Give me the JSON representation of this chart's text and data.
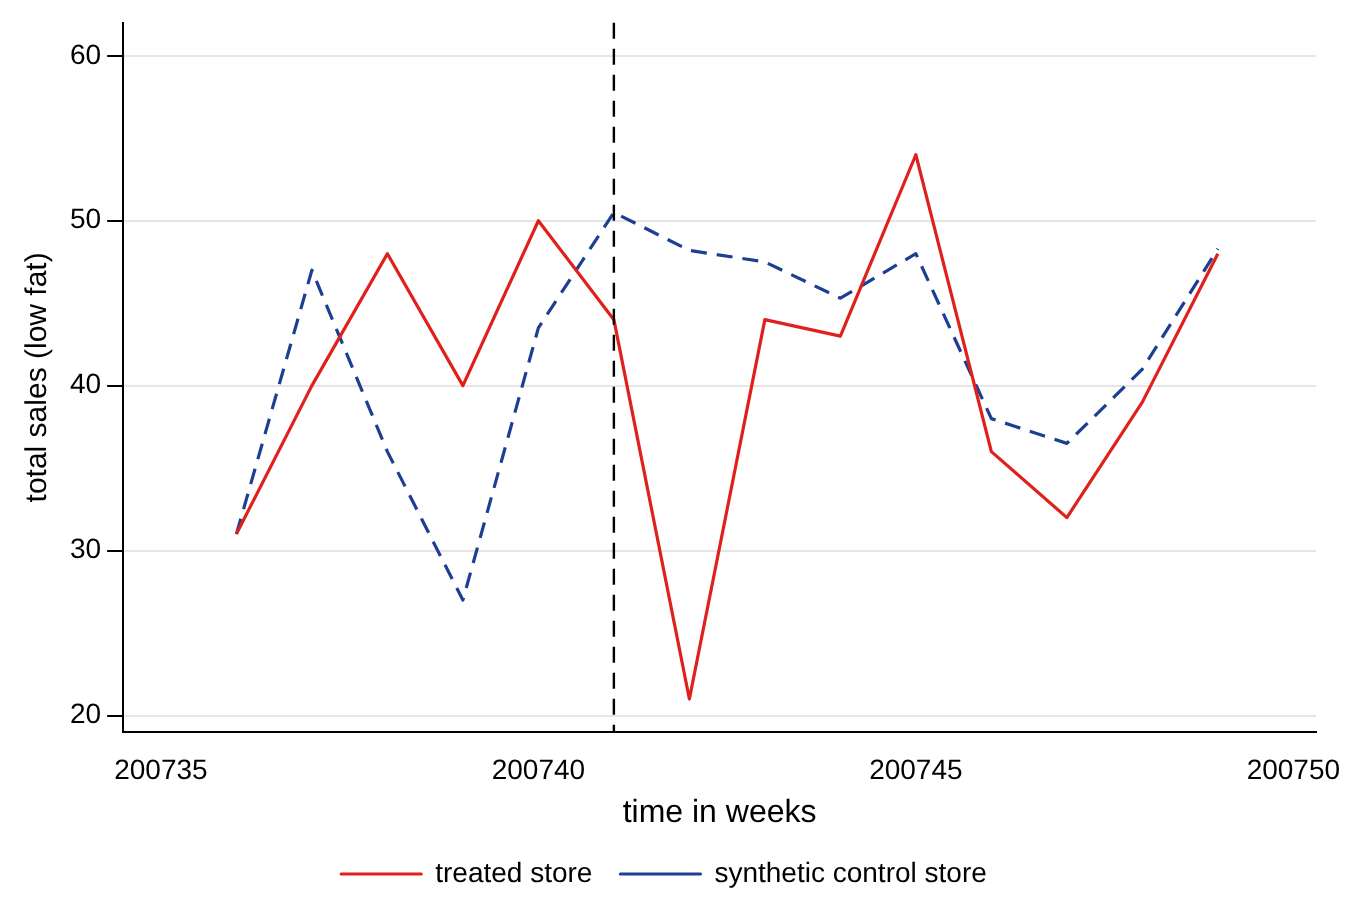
{
  "chart_data": {
    "type": "line",
    "xlabel": "time in weeks",
    "ylabel": "total sales (low fat)",
    "x": [
      200736,
      200737,
      200738,
      200739,
      200740,
      200741,
      200742,
      200743,
      200744,
      200745,
      200746,
      200747,
      200748,
      200749
    ],
    "series": [
      {
        "name": "treated store",
        "color": "#e0201b",
        "line_style": "solid",
        "values": [
          31,
          40,
          48,
          40,
          50,
          44,
          21,
          44,
          43,
          54,
          36,
          32,
          39,
          48
        ]
      },
      {
        "name": "synthetic control store",
        "color": "#1c3f94",
        "line_style": "dashed",
        "values": [
          31,
          47,
          36,
          27,
          43.5,
          50.5,
          48.2,
          47.5,
          45.3,
          48,
          38,
          36.5,
          41,
          48.3
        ]
      }
    ],
    "xlim": [
      200734.5,
      200750.3
    ],
    "xticks": [
      200735,
      200740,
      200745,
      200750
    ],
    "ylim": [
      19,
      62
    ],
    "yticks": [
      20,
      30,
      40,
      50,
      60
    ],
    "ref_lines": [
      {
        "axis": "x",
        "value": 200741,
        "color": "#000000",
        "line_style": "dashed"
      }
    ],
    "grid": "y",
    "legend": "bottom",
    "marker": "none"
  }
}
